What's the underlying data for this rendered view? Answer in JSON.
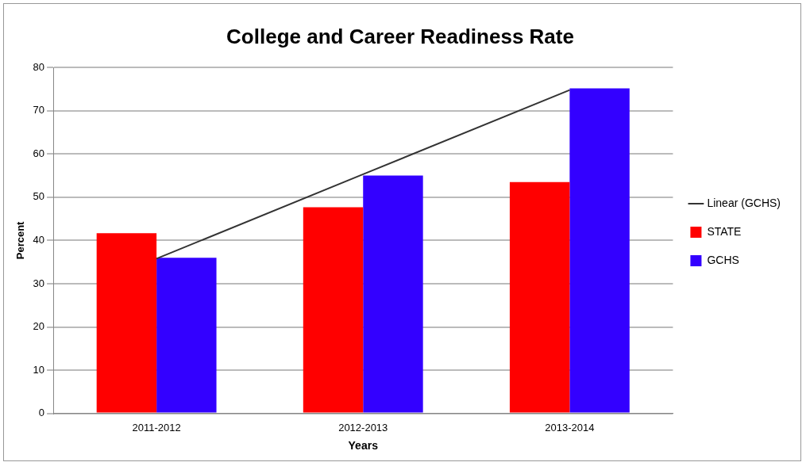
{
  "chart_data": {
    "type": "bar",
    "title": "College and Career Readiness Rate",
    "xlabel": "Years",
    "ylabel": "Percent",
    "categories": [
      "2011-2012",
      "2012-2013",
      "2013-2014"
    ],
    "series": [
      {
        "name": "STATE",
        "color": "#ff0000",
        "values": [
          41.7,
          47.7,
          53.5
        ]
      },
      {
        "name": "GCHS",
        "color": "#3300ff",
        "values": [
          36,
          55,
          75.2
        ]
      },
      {
        "name": "Linear (GCHS)",
        "type": "line",
        "color": "#333333",
        "values": [
          35.8,
          55.3,
          74.8
        ],
        "marker": "none"
      }
    ],
    "ylim": [
      0,
      80
    ],
    "yticks": [
      0,
      10,
      20,
      30,
      40,
      50,
      60,
      70,
      80
    ],
    "grid": "y",
    "legend": "right"
  }
}
